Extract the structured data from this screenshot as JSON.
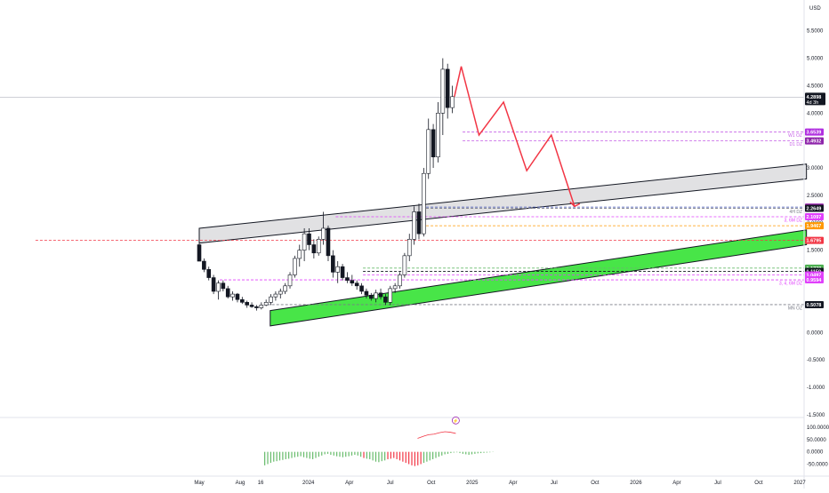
{
  "header": {
    "currency_label": "USD"
  },
  "chart_data": {
    "type": "candlestick",
    "y_axis": {
      "ticks": [
        5.5,
        5.0,
        4.5,
        4.0,
        3.5,
        3.0,
        2.5,
        2.0,
        1.5,
        1.0,
        0.5,
        0.0,
        -0.5,
        -1.0,
        -1.5
      ],
      "labels": [
        "5.5000",
        "5.0000",
        "4.5000",
        "4.0000",
        "3.5000",
        "3.0000",
        "2.5000",
        "2.0000",
        "1.5000",
        "1.0000",
        "0.5000",
        "0.0000",
        "-0.5000",
        "-1.0000",
        "-1.5000"
      ],
      "ylim": [
        -1.55,
        5.9
      ]
    },
    "x_axis": {
      "labels": [
        "May",
        "Aug",
        "16",
        "2024",
        "Apr",
        "Jul",
        "Oct",
        "2025",
        "Apr",
        "Jul",
        "Oct",
        "2026",
        "Apr",
        "Jul",
        "Oct",
        "2027"
      ],
      "positions": [
        0,
        3,
        4.5,
        8,
        11,
        14,
        17,
        20,
        23,
        26,
        29,
        32,
        35,
        38,
        41,
        44
      ]
    },
    "last_price": {
      "value": 4.2898,
      "label": "4.2898",
      "countdown": "4d 3h"
    },
    "candles": [
      [
        0.0,
        1.6,
        1.65,
        1.3,
        1.3
      ],
      [
        0.35,
        1.3,
        1.35,
        1.1,
        1.15
      ],
      [
        0.7,
        1.15,
        1.2,
        0.95,
        1.0
      ],
      [
        1.05,
        1.0,
        1.05,
        0.7,
        0.75
      ],
      [
        1.4,
        0.75,
        0.95,
        0.6,
        0.9
      ],
      [
        1.75,
        0.9,
        0.95,
        0.75,
        0.8
      ],
      [
        2.1,
        0.8,
        0.85,
        0.62,
        0.65
      ],
      [
        2.45,
        0.65,
        0.75,
        0.58,
        0.7
      ],
      [
        2.8,
        0.7,
        0.72,
        0.55,
        0.6
      ],
      [
        3.15,
        0.6,
        0.65,
        0.52,
        0.55
      ],
      [
        3.5,
        0.55,
        0.58,
        0.45,
        0.5
      ],
      [
        3.85,
        0.5,
        0.55,
        0.45,
        0.47
      ],
      [
        4.2,
        0.47,
        0.5,
        0.4,
        0.45
      ],
      [
        4.55,
        0.45,
        0.55,
        0.42,
        0.5
      ],
      [
        4.9,
        0.5,
        0.6,
        0.48,
        0.55
      ],
      [
        5.25,
        0.55,
        0.7,
        0.5,
        0.65
      ],
      [
        5.6,
        0.65,
        0.75,
        0.58,
        0.7
      ],
      [
        5.95,
        0.7,
        0.8,
        0.62,
        0.75
      ],
      [
        6.3,
        0.75,
        0.9,
        0.7,
        0.85
      ],
      [
        6.65,
        0.85,
        1.1,
        0.8,
        1.05
      ],
      [
        7.0,
        1.05,
        1.4,
        1.0,
        1.35
      ],
      [
        7.35,
        1.35,
        1.6,
        1.2,
        1.5
      ],
      [
        7.7,
        1.5,
        1.9,
        1.3,
        1.8
      ],
      [
        8.05,
        1.8,
        1.9,
        1.5,
        1.6
      ],
      [
        8.4,
        1.6,
        1.7,
        1.35,
        1.45
      ],
      [
        8.75,
        1.45,
        1.75,
        1.4,
        1.7
      ],
      [
        9.1,
        1.7,
        2.2,
        1.6,
        1.9
      ],
      [
        9.45,
        1.9,
        1.95,
        1.3,
        1.4
      ],
      [
        9.8,
        1.4,
        1.5,
        1.0,
        1.1
      ],
      [
        10.15,
        1.1,
        1.3,
        0.9,
        1.2
      ],
      [
        10.5,
        1.2,
        1.25,
        0.95,
        1.0
      ],
      [
        10.85,
        1.0,
        1.1,
        0.9,
        0.95
      ],
      [
        11.2,
        0.95,
        1.05,
        0.85,
        0.9
      ],
      [
        11.55,
        0.9,
        0.95,
        0.78,
        0.85
      ],
      [
        11.9,
        0.85,
        0.9,
        0.7,
        0.75
      ],
      [
        12.25,
        0.75,
        0.8,
        0.62,
        0.68
      ],
      [
        12.6,
        0.68,
        0.72,
        0.58,
        0.62
      ],
      [
        12.95,
        0.62,
        0.78,
        0.55,
        0.72
      ],
      [
        13.3,
        0.72,
        0.8,
        0.6,
        0.65
      ],
      [
        13.65,
        0.65,
        0.7,
        0.5,
        0.55
      ],
      [
        14.0,
        0.55,
        0.85,
        0.5,
        0.8
      ],
      [
        14.35,
        0.8,
        0.9,
        0.72,
        0.85
      ],
      [
        14.7,
        0.85,
        1.1,
        0.8,
        1.05
      ],
      [
        15.05,
        1.05,
        1.45,
        1.0,
        1.4
      ],
      [
        15.4,
        1.4,
        1.8,
        1.3,
        1.7
      ],
      [
        15.75,
        1.7,
        2.3,
        1.6,
        2.2
      ],
      [
        16.1,
        2.2,
        2.35,
        1.7,
        1.8
      ],
      [
        16.45,
        1.8,
        3.0,
        1.75,
        2.9
      ],
      [
        16.8,
        2.9,
        3.9,
        2.8,
        3.7
      ],
      [
        17.15,
        3.7,
        3.8,
        3.0,
        3.2
      ],
      [
        17.5,
        3.2,
        4.2,
        3.1,
        4.0
      ],
      [
        17.85,
        4.0,
        5.0,
        3.6,
        4.8
      ],
      [
        18.2,
        4.8,
        4.9,
        3.9,
        4.1
      ],
      [
        18.55,
        4.1,
        4.5,
        4.0,
        4.3
      ]
    ],
    "zones": [
      {
        "name": "grey-resistance-channel",
        "x1": 0,
        "y1_top": 1.9,
        "y1_bot": 1.63,
        "x2": 44.5,
        "y2_top": 3.07,
        "y2_bot": 2.8,
        "color": "#c8c8cc"
      },
      {
        "name": "green-support-channel",
        "x1": 5.2,
        "y1_top": 0.4,
        "y1_bot": 0.12,
        "x2": 44.5,
        "y2_top": 1.87,
        "y2_bot": 1.6,
        "color": "#28e028"
      }
    ],
    "levels": [
      {
        "value": 3.6539,
        "label": "3.6539",
        "zone": "W1 OZ",
        "tag_color": "#b02fe0",
        "line_color": "#c45ce6",
        "x_start": 19.3
      },
      {
        "value": 3.4932,
        "label": "3.4932",
        "zone": "D1 DZ",
        "tag_color": "#8e24aa",
        "line_color": "#c45ce6",
        "x_start": 19.3
      },
      {
        "value": 2.2867,
        "label": "2.2867",
        "zone": "",
        "tag_color": "#9c27b0",
        "line_color": "#3f51b5",
        "x_start": 16.3
      },
      {
        "value": 2.2649,
        "label": "2.2649",
        "zone": "4H DZ",
        "tag_color": "#131722",
        "line_color": "#787b86",
        "x_start": 16.3
      },
      {
        "value": 2.1097,
        "label": "2.1097",
        "zone": "3, 6M DZ",
        "tag_color": "#e040fb",
        "line_color": "#e040fb",
        "x_start": 10.0
      },
      {
        "value": 1.9467,
        "label": "1.9467",
        "zone": "",
        "tag_color": "#ff9800",
        "line_color": "#ff9800",
        "x_start": 16.3
      },
      {
        "value": 1.6795,
        "label": "1.6795",
        "zone": "",
        "tag_color": "#f23645",
        "line_color": "#f23645",
        "x_start": -12.0
      },
      {
        "value": 1.1738,
        "label": "1.1738",
        "zone": "",
        "tag_color": "#4caf50",
        "line_color": "#66bb6a",
        "x_start": 12.0
      },
      {
        "value": 1.115,
        "label": "1.1150",
        "zone": "",
        "tag_color": "#131722",
        "line_color": "#131722",
        "x_start": 12.0
      },
      {
        "value": 1.0497,
        "label": "1.0497",
        "zone": "",
        "tag_color": "#e040fb",
        "line_color": "#e040fb",
        "x_start": 12.0
      },
      {
        "value": 0.9594,
        "label": "0.9594",
        "zone": "3, 4, 6M DZ",
        "tag_color": "#e040fb",
        "line_color": "#e040fb",
        "x_start": 1.5
      },
      {
        "value": 0.5078,
        "label": "0.5078",
        "zone": "MN OZ",
        "tag_color": "#131722",
        "line_color": "#787b86",
        "x_start": 5.0
      }
    ],
    "projection": {
      "points": [
        [
          18.7,
          4.3
        ],
        [
          19.2,
          4.85
        ],
        [
          20.5,
          3.6
        ],
        [
          22.3,
          4.2
        ],
        [
          24.0,
          2.95
        ],
        [
          25.8,
          3.6
        ],
        [
          27.5,
          2.3
        ]
      ],
      "color": "#f23645"
    },
    "oscillator": {
      "ticks": [
        100,
        50,
        0,
        -50
      ],
      "labels": [
        "100.0000",
        "50.0000",
        "0.0000",
        "-50.0000"
      ],
      "ylim": [
        -70,
        140
      ],
      "histogram_start_x": 4.8,
      "histogram_step": 0.22,
      "histogram": [
        -55,
        -50,
        -45,
        -40,
        -38,
        -35,
        -33,
        -30,
        -28,
        -25,
        -22,
        -20,
        -18,
        -22,
        -25,
        -28,
        -30,
        -25,
        -20,
        -15,
        -10,
        -8,
        -12,
        -15,
        -18,
        -20,
        -22,
        -20,
        -18,
        -15,
        -12,
        -15,
        -20,
        -25,
        -28,
        -30,
        -35,
        -40,
        -42,
        -38,
        -35,
        -30,
        -28,
        -25,
        -30,
        -35,
        -40,
        -45,
        -50,
        -55,
        -58,
        -55,
        -50,
        -45,
        -40,
        -35,
        -30,
        -25,
        -20,
        -15,
        -10,
        -8,
        -5,
        -3,
        -2,
        -5,
        -8,
        -10,
        -12,
        -10,
        -8,
        -6,
        -5,
        -4,
        -3,
        -2,
        -1
      ],
      "negative_highlight": [
        [
          27,
          33
        ],
        [
          41,
          52
        ]
      ],
      "line_points": [
        [
          16.0,
          55
        ],
        [
          16.5,
          65
        ],
        [
          16.8,
          70
        ],
        [
          17.2,
          72
        ],
        [
          17.6,
          78
        ],
        [
          18.0,
          82
        ],
        [
          18.4,
          80
        ],
        [
          18.8,
          75
        ]
      ],
      "badge_glyph": "⚡"
    }
  }
}
